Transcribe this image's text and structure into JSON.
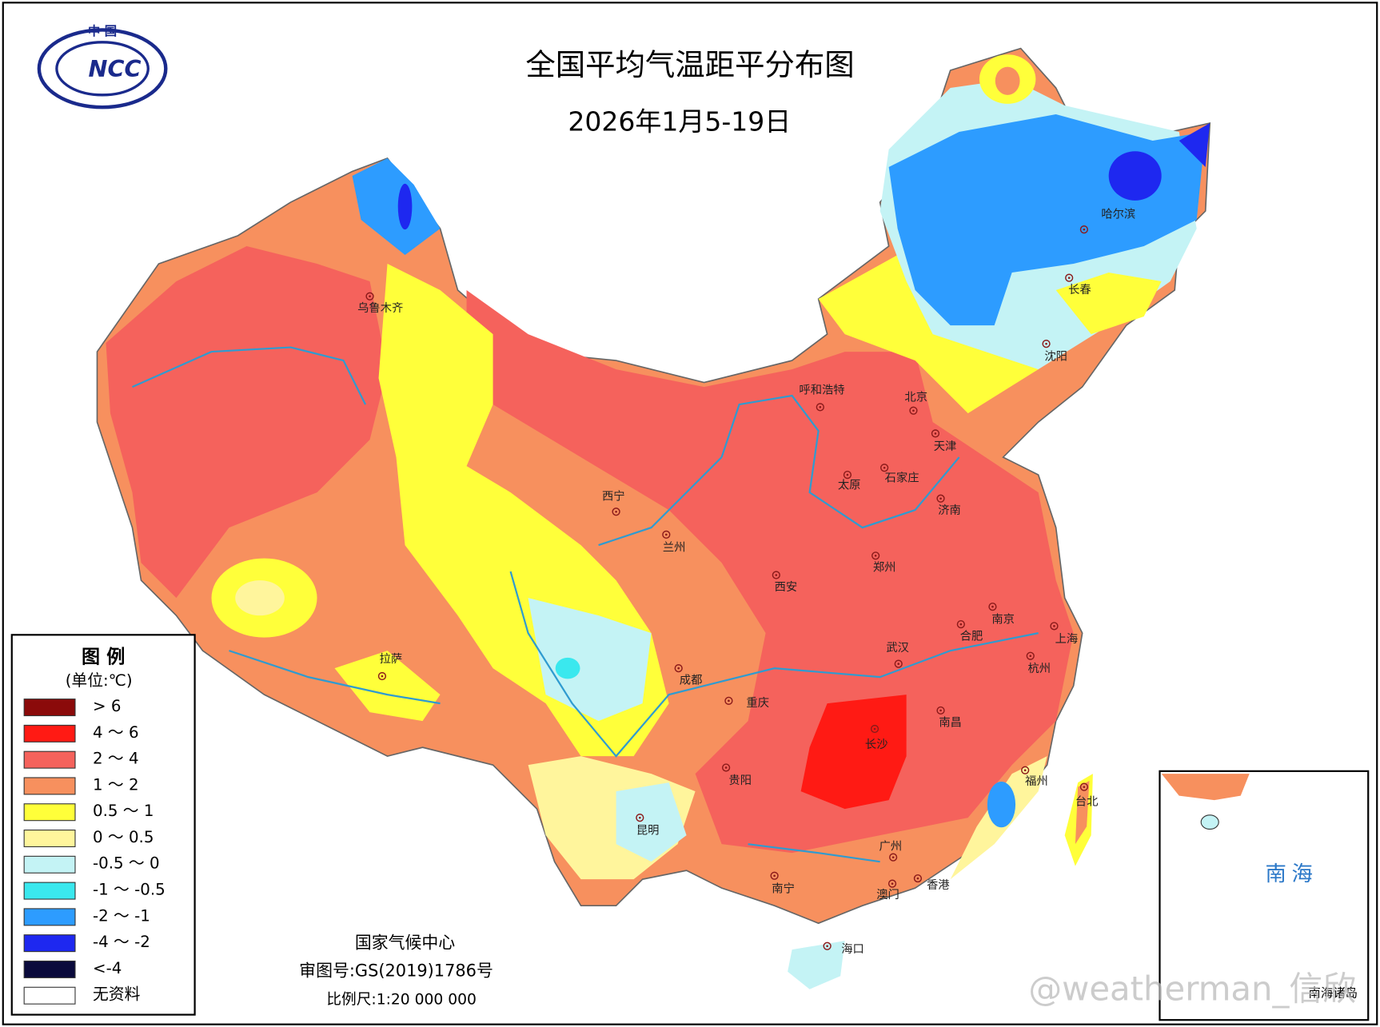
{
  "header": {
    "title": "全国平均气温距平分布图",
    "subtitle": "2026年1月5-19日",
    "logo_top": "中 国",
    "logo_text": "NCC"
  },
  "legend": {
    "title": "图 例",
    "unit": "(单位:℃)",
    "items": [
      {
        "label": "> 6",
        "color": "#8b0a0a"
      },
      {
        "label": "4 ～ 6",
        "color": "#ff1a14"
      },
      {
        "label": "2 ～ 4",
        "color": "#f5625c"
      },
      {
        "label": "1 ～ 2",
        "color": "#f7905e"
      },
      {
        "label": "0.5 ～ 1",
        "color": "#ffff3a"
      },
      {
        "label": "0 ～ 0.5",
        "color": "#fff59c"
      },
      {
        "label": "-0.5 ～ 0",
        "color": "#c4f3f5"
      },
      {
        "label": "-1 ～ -0.5",
        "color": "#3ae8ee"
      },
      {
        "label": "-2 ～ -1",
        "color": "#2d9cff"
      },
      {
        "label": "-4 ～ -2",
        "color": "#1e28f0"
      },
      {
        "label": "<-4",
        "color": "#0a0a3c"
      },
      {
        "label": "无资料",
        "color": "#ffffff"
      }
    ]
  },
  "cities": [
    "乌鲁木齐",
    "呼和浩特",
    "北京",
    "天津",
    "石家庄",
    "太原",
    "济南",
    "西宁",
    "兰州",
    "郑州",
    "西安",
    "南京",
    "合肥",
    "上海",
    "武汉",
    "杭州",
    "拉萨",
    "成都",
    "重庆",
    "长沙",
    "南昌",
    "福州",
    "贵阳",
    "台北",
    "昆明",
    "广州",
    "南宁",
    "香港",
    "澳门",
    "海口",
    "哈尔滨",
    "长春",
    "沈阳"
  ],
  "footer": {
    "org": "国家气候中心",
    "approval": "审图号:GS(2019)1786号",
    "scale": "比例尺:1:20 000 000"
  },
  "inset": {
    "label": "南 海",
    "caption": "南海诸岛"
  },
  "watermark": "@weatherman_信欣"
}
